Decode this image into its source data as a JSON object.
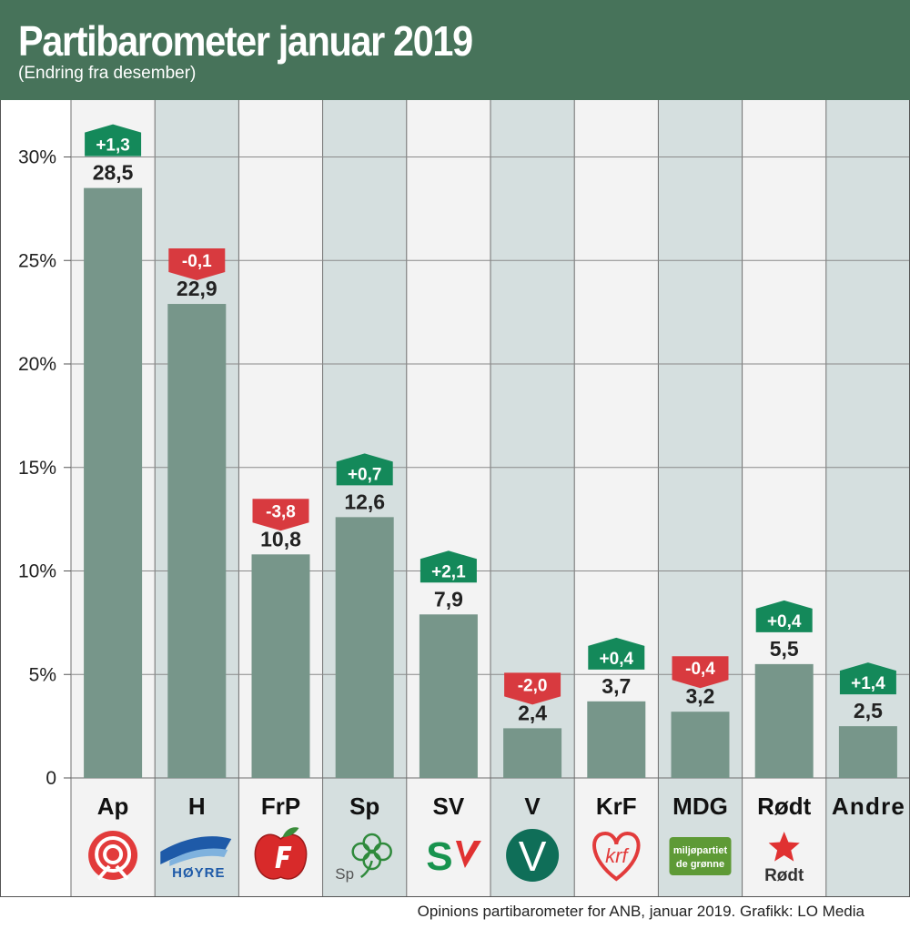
{
  "header": {
    "title": "Partibarometer januar 2019",
    "subtitle": "(Endring fra desember)"
  },
  "footer": {
    "source": "Opinions partibarometer for ANB, januar 2019. Grafikk: LO Media"
  },
  "colors": {
    "header_bg": "#47735a",
    "bar": "#77968a",
    "column_light": "#f3f3f3",
    "column_dark": "#d5dfdf",
    "positive": "#14895a",
    "negative": "#d83a3f",
    "text": "#222222"
  },
  "chart_data": {
    "type": "bar",
    "title": "Partibarometer januar 2019",
    "subtitle": "(Endring fra desember)",
    "xlabel": "",
    "ylabel": "",
    "ylim": [
      0,
      30
    ],
    "yticks": [
      0,
      5,
      10,
      15,
      20,
      25,
      30
    ],
    "ytick_labels": [
      "0",
      "5%",
      "10%",
      "15%",
      "20%",
      "25%",
      "30%"
    ],
    "categories": [
      "Ap",
      "H",
      "FrP",
      "Sp",
      "SV",
      "V",
      "KrF",
      "MDG",
      "Rødt",
      "Andre"
    ],
    "values": [
      28.5,
      22.9,
      10.8,
      12.6,
      7.9,
      2.4,
      3.7,
      3.2,
      5.5,
      2.5
    ],
    "value_labels": [
      "28,5",
      "22,9",
      "10,8",
      "12,6",
      "7,9",
      "2,4",
      "3,7",
      "3,2",
      "5,5",
      "2,5"
    ],
    "changes": [
      1.3,
      -0.1,
      -3.8,
      0.7,
      2.1,
      -2.0,
      0.4,
      -0.4,
      0.4,
      1.4
    ],
    "change_labels": [
      "+1,3",
      "-0,1",
      "-3,8",
      "+0,7",
      "+2,1",
      "-2,0",
      "+0,4",
      "-0,4",
      "+0,4",
      "+1,4"
    ],
    "logos": [
      "ap-rose-logo",
      "hoyre-logo",
      "frp-apple-logo",
      "sp-clover-logo",
      "sv-logo",
      "venstre-logo",
      "krf-heart-logo",
      "mdg-logo",
      "rodt-star-logo",
      ""
    ],
    "logo_texts": {
      "H": "HØYRE",
      "Sp": "Sp",
      "SV": "SV",
      "V": "V",
      "KrF": "krf",
      "MDG": "miljøpartiet de grønne",
      "Rødt": "Rødt"
    }
  }
}
